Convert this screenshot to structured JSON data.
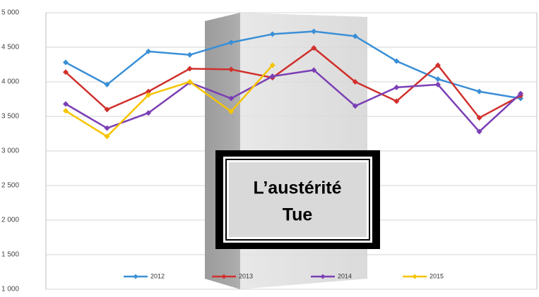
{
  "chart_data": {
    "type": "line",
    "categories": [
      null,
      null,
      null,
      null,
      null,
      null,
      null,
      null,
      null,
      null,
      null,
      null
    ],
    "series": [
      {
        "name": "2012",
        "color": "#3a8fd6",
        "values": [
          4280,
          3960,
          4440,
          4390,
          4570,
          4690,
          4730,
          4660,
          4300,
          4040,
          3860,
          3760
        ]
      },
      {
        "name": "2013",
        "color": "#d0312d",
        "values": [
          4140,
          3600,
          3860,
          4190,
          4180,
          4060,
          4490,
          4000,
          3720,
          4240,
          3480,
          3800
        ]
      },
      {
        "name": "2014",
        "color": "#7b3fb5",
        "values": [
          3680,
          3330,
          3550,
          3990,
          3760,
          4080,
          4170,
          3650,
          3920,
          3960,
          3280,
          3830
        ]
      },
      {
        "name": "2015",
        "color": "#f5c400",
        "values": [
          3580,
          3210,
          3810,
          4000,
          3570,
          4240,
          null,
          null,
          null,
          null,
          null,
          null
        ]
      }
    ],
    "ylim": [
      1000,
      5000
    ],
    "yticks": [
      {
        "value": 1000,
        "label": "1 000"
      },
      {
        "value": 1500,
        "label": "1 500"
      },
      {
        "value": 2000,
        "label": "2 000"
      },
      {
        "value": 2500,
        "label": "2 500"
      },
      {
        "value": 3000,
        "label": "3 000"
      },
      {
        "value": 3500,
        "label": "3 500"
      },
      {
        "value": 4000,
        "label": "4 000"
      },
      {
        "value": 4500,
        "label": "4 500"
      },
      {
        "value": 5000,
        "label": "5 000"
      }
    ],
    "grid": true,
    "legend": "bottom"
  },
  "sign": {
    "lines": [
      "L’austérité",
      "Tue"
    ]
  }
}
